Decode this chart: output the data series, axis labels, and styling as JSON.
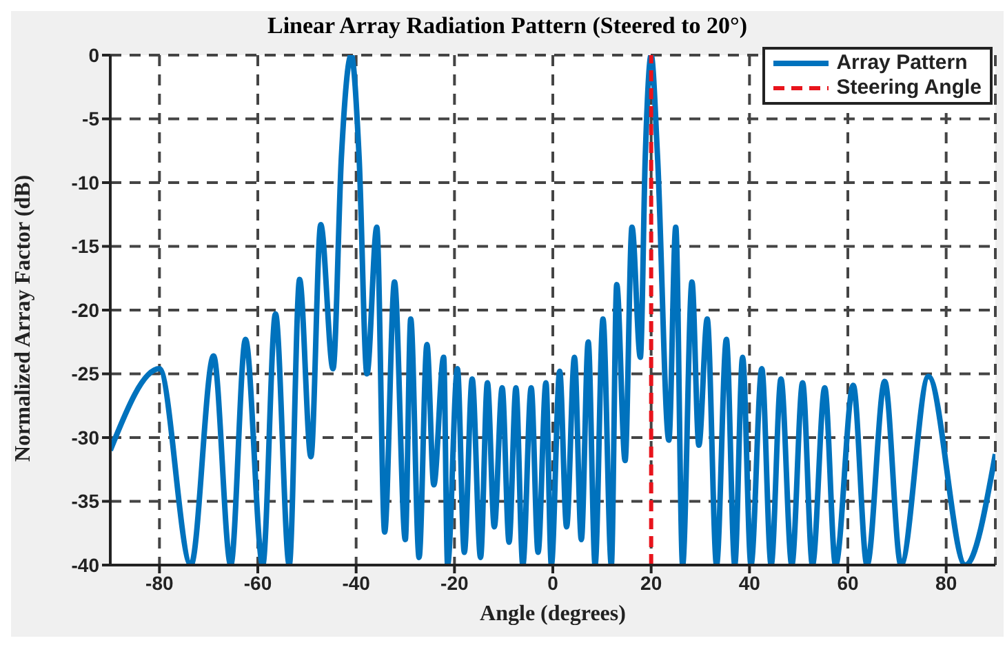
{
  "chart_data": {
    "type": "line",
    "title": "Linear Array Radiation Pattern (Steered to 20°)",
    "xlabel": "Angle (degrees)",
    "ylabel": "Normalized Array Factor (dB)",
    "xlim": [
      -90,
      90
    ],
    "xticks": [
      -80,
      -60,
      -40,
      -20,
      0,
      20,
      40,
      60,
      80
    ],
    "ylim": [
      -40,
      0
    ],
    "yticks": [
      -40,
      -35,
      -30,
      -25,
      -20,
      -15,
      -10,
      -5,
      0
    ],
    "grid": true,
    "legend": "top right",
    "series": [
      {
        "name": "Array Pattern",
        "color": "#0072bd",
        "line_style": "solid",
        "x": [
          -90,
          -80,
          -73.6,
          -69,
          -65.5,
          -62.5,
          -59,
          -56.4,
          -53.6,
          -51.5,
          -49.2,
          -47.2,
          -44.7,
          -43,
          -41,
          -39.4,
          -37.8,
          -35.8,
          -34.2,
          -32.2,
          -30,
          -28.9,
          -27.2,
          -25.6,
          -24.2,
          -22.2,
          -21.4,
          -19.4,
          -18,
          -16.4,
          -14.7,
          -13.3,
          -11.9,
          -10.3,
          -8.9,
          -7.5,
          -6.1,
          -4.4,
          -3,
          -1.4,
          -0.3,
          1.4,
          2.8,
          4.4,
          5.8,
          7.2,
          8.6,
          10.2,
          11.9,
          13,
          14.7,
          16.1,
          17.8,
          18.8,
          20,
          21.3,
          23.6,
          25,
          26.4,
          28.3,
          29.7,
          31.4,
          33.3,
          35.3,
          37,
          38.6,
          40.3,
          42.5,
          44.4,
          46.4,
          48.6,
          50.8,
          52.8,
          55.3,
          57.5,
          61.1,
          63.9,
          67.5,
          70.8,
          76.4,
          83.9,
          90
        ],
        "values": [
          -31,
          -24.6,
          -40,
          -23.6,
          -40,
          -22.3,
          -40,
          -20.3,
          -40,
          -17.6,
          -31.5,
          -13.3,
          -24.6,
          -8,
          0,
          -8,
          -25,
          -13.5,
          -37.4,
          -17.8,
          -38,
          -20.7,
          -39.4,
          -22.7,
          -33.7,
          -23.7,
          -40,
          -24.6,
          -39,
          -25.4,
          -39.4,
          -25.7,
          -37,
          -26.1,
          -38.2,
          -26.1,
          -40,
          -26.1,
          -39,
          -25.7,
          -40,
          -24.8,
          -37,
          -23.7,
          -38,
          -22.5,
          -40,
          -20.7,
          -40,
          -18,
          -31.8,
          -13.5,
          -23.7,
          -8,
          0,
          -8,
          -30.2,
          -13.5,
          -40,
          -17.8,
          -30.6,
          -20.7,
          -40,
          -22.3,
          -40,
          -23.7,
          -40,
          -24.6,
          -40,
          -25.4,
          -40,
          -25.7,
          -40,
          -26.1,
          -40,
          -25.9,
          -40,
          -25.6,
          -40,
          -25.2,
          -40,
          -31.3
        ]
      },
      {
        "name": "Steering Angle",
        "color": "#e8141c",
        "line_style": "dashed",
        "x": [
          20,
          20
        ],
        "values": [
          -40,
          0
        ]
      }
    ]
  }
}
